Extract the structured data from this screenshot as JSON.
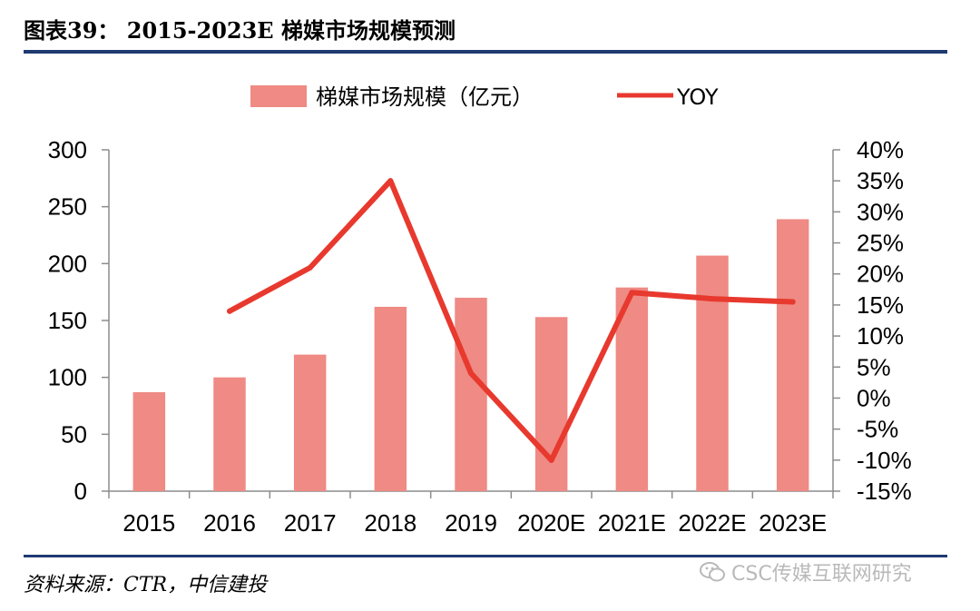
{
  "figure": {
    "title": "图表39： 2015-2023E 梯媒市场规模预测",
    "source": "资料来源：CTR，中信建投",
    "watermark": "CSC传媒互联网研究"
  },
  "chart_data": {
    "type": "bar",
    "title": "",
    "categories": [
      "2015",
      "2016",
      "2017",
      "2018",
      "2019",
      "2020E",
      "2021E",
      "2022E",
      "2023E"
    ],
    "series": [
      {
        "name": "梯媒市场规模（亿元）",
        "type": "bar",
        "axis": "left",
        "color": "#ef8a84",
        "values": [
          87,
          100,
          120,
          162,
          170,
          153,
          179,
          207,
          239
        ]
      },
      {
        "name": "YOY",
        "type": "line",
        "axis": "right",
        "color": "#e8392e",
        "unit": "%",
        "values": [
          null,
          14,
          21,
          35,
          4,
          -10,
          17,
          16,
          15.5
        ]
      }
    ],
    "y_left": {
      "min": 0,
      "max": 300,
      "step": 50,
      "tick_labels": [
        "0",
        "50",
        "100",
        "150",
        "200",
        "250",
        "300"
      ]
    },
    "y_right": {
      "min": -15,
      "max": 40,
      "step": 5,
      "tick_labels": [
        "-15%",
        "-10%",
        "-5%",
        "0%",
        "5%",
        "10%",
        "15%",
        "20%",
        "25%",
        "30%",
        "35%",
        "40%"
      ]
    },
    "legend": {
      "position": "top-center",
      "items": [
        "梯媒市场规模（亿元）",
        "YOY"
      ]
    },
    "grid": false
  }
}
